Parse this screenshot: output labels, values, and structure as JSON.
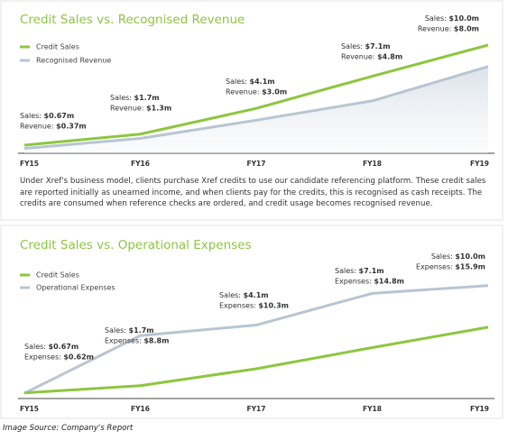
{
  "chart_data": [
    {
      "type": "line",
      "title": "Credit Sales vs. Recognised Revenue",
      "categories": [
        "FY15",
        "FY16",
        "FY17",
        "FY18",
        "FY19"
      ],
      "series": [
        {
          "name": "Credit Sales",
          "color": "#8dc63f",
          "label_prefix": "Sales:",
          "values": [
            0.67,
            1.7,
            4.1,
            7.1,
            10.0
          ],
          "value_labels": [
            "$0.67m",
            "$1.7m",
            "$4.1m",
            "$7.1m",
            "$10.0m"
          ]
        },
        {
          "name": "Recognised Revenue",
          "color": "#b8c5d2",
          "label_prefix": "Revenue:",
          "values": [
            0.37,
            1.3,
            3.0,
            4.8,
            8.0
          ],
          "value_labels": [
            "$0.37m",
            "$1.3m",
            "$3.0m",
            "$4.8m",
            "$8.0m"
          ],
          "area": true
        }
      ],
      "ylim": [
        0,
        10
      ]
    },
    {
      "type": "line",
      "title": "Credit Sales vs. Operational Expenses",
      "categories": [
        "FY15",
        "FY16",
        "FY17",
        "FY18",
        "FY19"
      ],
      "series": [
        {
          "name": "Credit Sales",
          "color": "#8dc63f",
          "label_prefix": "Sales:",
          "values": [
            0.67,
            1.7,
            4.1,
            7.1,
            10.0
          ],
          "value_labels": [
            "$0.67m",
            "$1.7m",
            "$4.1m",
            "$7.1m",
            "$10.0m"
          ]
        },
        {
          "name": "Operational Expenses",
          "color": "#b8c5d2",
          "label_prefix": "Expenses:",
          "values": [
            0.62,
            8.8,
            10.3,
            14.8,
            15.9
          ],
          "value_labels": [
            "$0.62m",
            "$8.8m",
            "$10.3m",
            "$14.8m",
            "$15.9m"
          ]
        }
      ],
      "ylim": [
        0,
        16
      ]
    }
  ],
  "description": "Under Xref's business model, clients purchase Xref credits to use our candidate referencing platform. These credit sales are reported initially as unearned income, and when clients pay for the credits, this is recognised as cash receipts. The credits are consumed when reference checks are ordered, and credit usage becomes recognised revenue.",
  "source": "Image Source: Company's Report"
}
